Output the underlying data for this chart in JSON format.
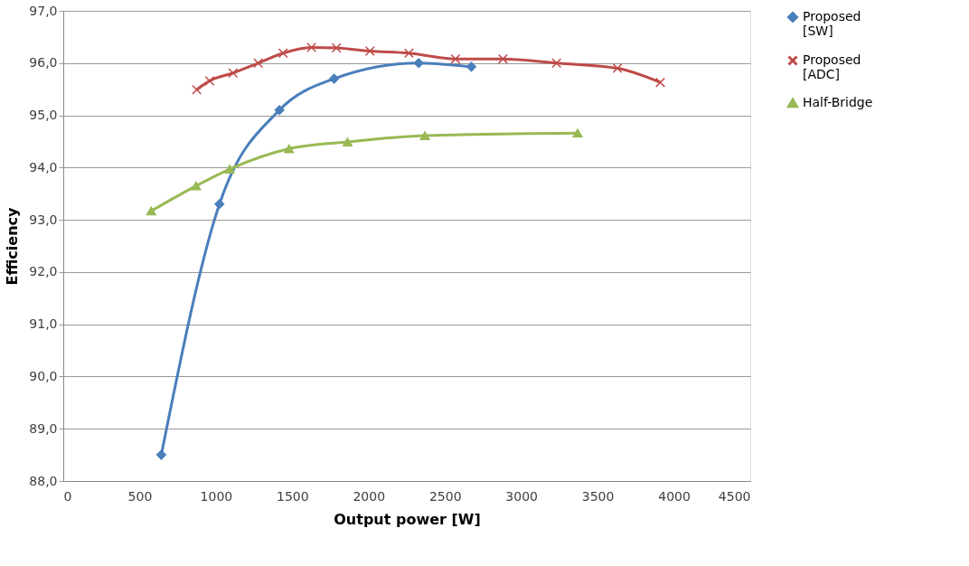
{
  "chart_data": {
    "type": "line",
    "xlabel": "Output power [W]",
    "ylabel": "Efficiency",
    "xlim": [
      0,
      4500
    ],
    "xticks": [
      0,
      500,
      1000,
      1500,
      2000,
      2500,
      3000,
      3500,
      4000,
      4500
    ],
    "ylim": [
      88,
      97
    ],
    "yticks": [
      {
        "value": 88,
        "label": "88,0"
      },
      {
        "value": 89,
        "label": "89,0"
      },
      {
        "value": 90,
        "label": "90,0"
      },
      {
        "value": 91,
        "label": "91,0"
      },
      {
        "value": 92,
        "label": "92,0"
      },
      {
        "value": 93,
        "label": "93,0"
      },
      {
        "value": 94,
        "label": "94,0"
      },
      {
        "value": 95,
        "label": "95,0"
      },
      {
        "value": 96,
        "label": "96,0"
      },
      {
        "value": 97,
        "label": "97,0"
      }
    ],
    "grid": "y",
    "legend": "right",
    "line_style": "solid",
    "series": [
      {
        "name": "Proposed [SW]",
        "color": "#4a7ebb",
        "marker": "diamond",
        "x": [
          642,
          1023,
          1416,
          1774,
          2328,
          2673
        ],
        "values": [
          88.5,
          93.3,
          95.1,
          95.7,
          96.0,
          95.93
        ]
      },
      {
        "name": "Proposed [ADC]",
        "color": "#be4b48",
        "marker": "cross",
        "x": [
          874,
          959,
          1112,
          1277,
          1440,
          1626,
          1789,
          2009,
          2264,
          2569,
          2880,
          3231,
          3630,
          3911
        ],
        "values": [
          95.49,
          95.66,
          95.81,
          96.0,
          96.19,
          96.3,
          96.29,
          96.23,
          96.19,
          96.08,
          96.08,
          96.0,
          95.9,
          95.63
        ]
      },
      {
        "name": "Half-Bridge",
        "color": "#98b954",
        "marker": "triangle",
        "x": [
          576,
          870,
          1090,
          1479,
          1862,
          2369,
          3369
        ],
        "values": [
          93.17,
          93.65,
          93.97,
          94.36,
          94.49,
          94.61,
          94.66
        ]
      }
    ]
  }
}
